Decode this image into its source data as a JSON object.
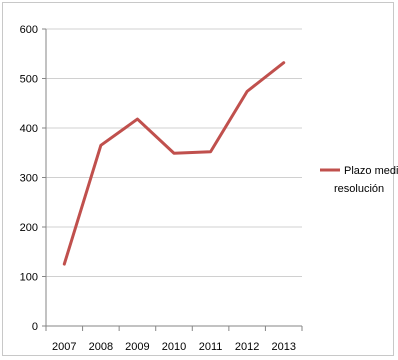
{
  "chart_data": {
    "type": "line",
    "title": "",
    "xlabel": "",
    "ylabel": "",
    "categories": [
      "2007",
      "2008",
      "2009",
      "2010",
      "2011",
      "2012",
      "2013"
    ],
    "series": [
      {
        "name": "Plazo medio resolución",
        "values": [
          125,
          365,
          418,
          349,
          352,
          474,
          532
        ],
        "color": "#c0504d"
      }
    ],
    "ylim": [
      0,
      600
    ],
    "yticks": [
      0,
      100,
      200,
      300,
      400,
      500,
      600
    ],
    "grid": "horizontal",
    "legend_position": "right"
  }
}
